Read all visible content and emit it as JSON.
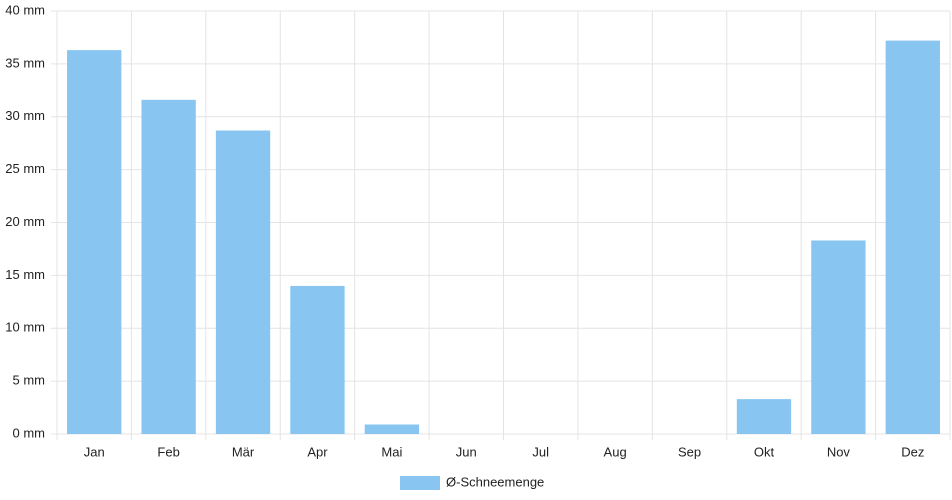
{
  "chart_data": {
    "type": "bar",
    "categories": [
      "Jan",
      "Feb",
      "Mär",
      "Apr",
      "Mai",
      "Jun",
      "Jul",
      "Aug",
      "Sep",
      "Okt",
      "Nov",
      "Dez"
    ],
    "series": [
      {
        "name": "Ø-Schneemenge",
        "color": "#88c6f1",
        "values": [
          36.3,
          31.6,
          28.7,
          14.0,
          0.9,
          0,
          0,
          0,
          0,
          3.3,
          18.3,
          37.2
        ]
      }
    ],
    "ylim": [
      0,
      40
    ],
    "yticks": [
      {
        "value": 0,
        "label": "0 mm"
      },
      {
        "value": 5,
        "label": "5 mm"
      },
      {
        "value": 10,
        "label": "10 mm"
      },
      {
        "value": 15,
        "label": "15 mm"
      },
      {
        "value": 20,
        "label": "20 mm"
      },
      {
        "value": 25,
        "label": "25 mm"
      },
      {
        "value": 30,
        "label": "30 mm"
      },
      {
        "value": 35,
        "label": "35 mm"
      },
      {
        "value": 40,
        "label": "40 mm"
      }
    ],
    "grid": true,
    "legend": "bottom"
  }
}
